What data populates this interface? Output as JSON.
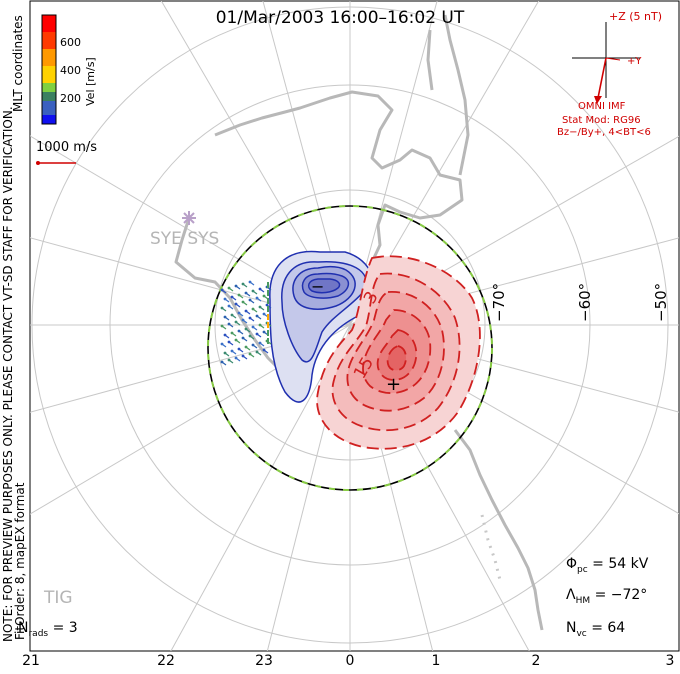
{
  "title": "01/Mar/2003 16:00–16:02 UT",
  "colorbar": {
    "label": "Vel [m/s]",
    "ticks": [
      "600",
      "400",
      "200"
    ],
    "colors": [
      "#0000ff",
      "#3f7fd0",
      "#4a9a60",
      "#8ad43a",
      "#ffcc00",
      "#ff7f00",
      "#ff0000"
    ]
  },
  "vector_scale": {
    "label": "1000 m/s"
  },
  "side_notes": {
    "coordinates": "MLT coordinates",
    "preview_note": "NOTE: FOR PREVIEW PURPOSES ONLY. PLEASE CONTACT VT-SD STAFF FOR VERIFICATION.",
    "fit_order": "FitOrder: 8, mapEX format"
  },
  "imf": {
    "z_label": "+Z (5 nT)",
    "y_label": "+Y",
    "source": "OMNI IMF",
    "model": "Stat Mod: RG96",
    "condition": "Bz−/By+, 4<BT<6"
  },
  "stations": {
    "syowa": "SYE SYS",
    "tig": "TIG"
  },
  "contour_labels": {
    "a": "3",
    "b": "15"
  },
  "potential_markers": {
    "min": "−",
    "max": "+"
  },
  "stats": {
    "nrads_label": "N",
    "nrads_sub": "rads",
    "nrads_value": "= 3",
    "phi_label": "Φ",
    "phi_sub": "pc",
    "phi_value": "= 54 kV",
    "lambda_label": "Λ",
    "lambda_sub": "HM",
    "lambda_value": "= −72°",
    "nvc_label": "N",
    "nvc_sub": "vc",
    "nvc_value": "= 64"
  },
  "mlt_labels": [
    "21",
    "22",
    "23",
    "0",
    "1",
    "2",
    "3"
  ],
  "lat_labels": [
    "−70°",
    "−60°",
    "−50°"
  ],
  "colors": {
    "positive": "#e04040",
    "negative": "#2030b0",
    "hmb": "#88cc44",
    "coast": "#b8b8b8",
    "imf": "#d00000"
  }
}
